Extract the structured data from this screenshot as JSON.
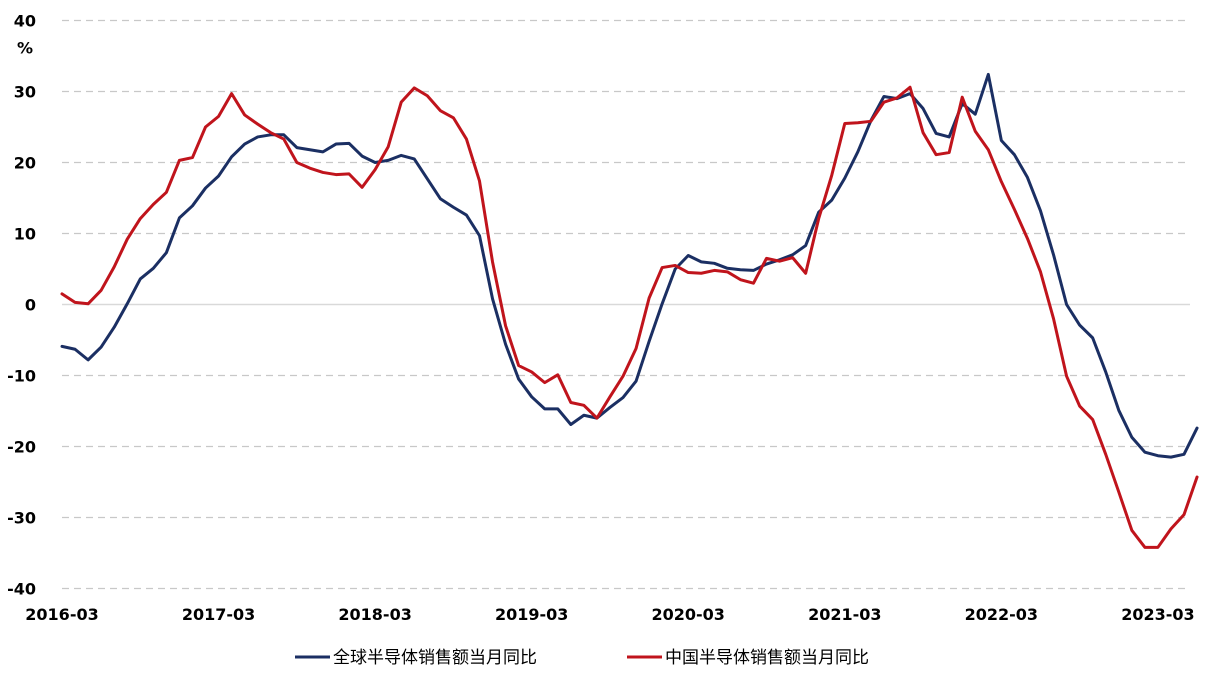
{
  "chart_data": {
    "type": "line",
    "unit_label": "%",
    "ylim": [
      -40,
      40
    ],
    "yticks": [
      -40,
      -30,
      -20,
      -10,
      0,
      10,
      20,
      30,
      40
    ],
    "xtick_labels": [
      "2016-03",
      "2017-03",
      "2018-03",
      "2019-03",
      "2020-03",
      "2021-03",
      "2022-03",
      "2023-03"
    ],
    "x_start": "2016-03",
    "x_end": "2023-05",
    "grid": true,
    "legend_position": "bottom",
    "colors": {
      "global": "#1b2f63",
      "china": "#c0141c"
    },
    "series": [
      {
        "name": "全球半导体销售额当月同比",
        "color": "#1b2f63",
        "values": [
          -5.9,
          -6.3,
          -7.8,
          -6.0,
          -3.2,
          0.1,
          3.6,
          5.1,
          7.3,
          12.2,
          13.9,
          16.4,
          18.1,
          20.8,
          22.6,
          23.6,
          23.9,
          23.9,
          22.1,
          21.8,
          21.5,
          22.6,
          22.7,
          20.9,
          20.0,
          20.3,
          21.0,
          20.5,
          17.7,
          14.9,
          13.7,
          12.6,
          9.7,
          0.8,
          -5.6,
          -10.5,
          -13.0,
          -14.7,
          -14.7,
          -16.9,
          -15.6,
          -16.0,
          -14.5,
          -13.1,
          -10.8,
          -5.2,
          0.1,
          5.0,
          6.9,
          6.0,
          5.8,
          5.1,
          4.9,
          4.8,
          5.7,
          6.3,
          7.0,
          8.3,
          13.0,
          14.7,
          17.8,
          21.5,
          25.9,
          29.3,
          29.0,
          29.7,
          27.6,
          24.1,
          23.6,
          28.3,
          26.8,
          32.4,
          23.1,
          21.1,
          17.9,
          13.2,
          7.0,
          0.0,
          -2.9,
          -4.7,
          -9.5,
          -14.9,
          -18.7,
          -20.8,
          -21.3,
          -21.5,
          -21.1,
          -17.4
        ]
      },
      {
        "name": "中国半导体销售额当月同比",
        "color": "#c0141c",
        "values": [
          1.5,
          0.3,
          0.1,
          2.0,
          5.3,
          9.2,
          12.1,
          14.1,
          15.8,
          20.3,
          20.7,
          25.0,
          26.5,
          29.7,
          26.7,
          25.4,
          24.2,
          23.3,
          20.0,
          19.2,
          18.6,
          18.3,
          18.4,
          16.5,
          19.0,
          22.2,
          28.5,
          30.5,
          29.4,
          27.3,
          26.3,
          23.3,
          17.4,
          6.0,
          -3.0,
          -8.6,
          -9.5,
          -11.0,
          -9.9,
          -13.8,
          -14.2,
          -16.0,
          -13.0,
          -10.1,
          -6.2,
          0.9,
          5.2,
          5.5,
          4.5,
          4.4,
          4.8,
          4.6,
          3.5,
          3.0,
          6.5,
          6.1,
          6.6,
          4.4,
          12.1,
          18.2,
          25.5,
          25.6,
          25.8,
          28.5,
          29.1,
          30.6,
          24.2,
          21.1,
          21.4,
          29.2,
          24.4,
          21.8,
          17.3,
          13.4,
          9.3,
          4.6,
          -2.0,
          -10.1,
          -14.3,
          -16.2,
          -21.1,
          -26.4,
          -31.8,
          -34.2,
          -34.2,
          -31.6,
          -29.6,
          -24.3
        ]
      }
    ]
  }
}
